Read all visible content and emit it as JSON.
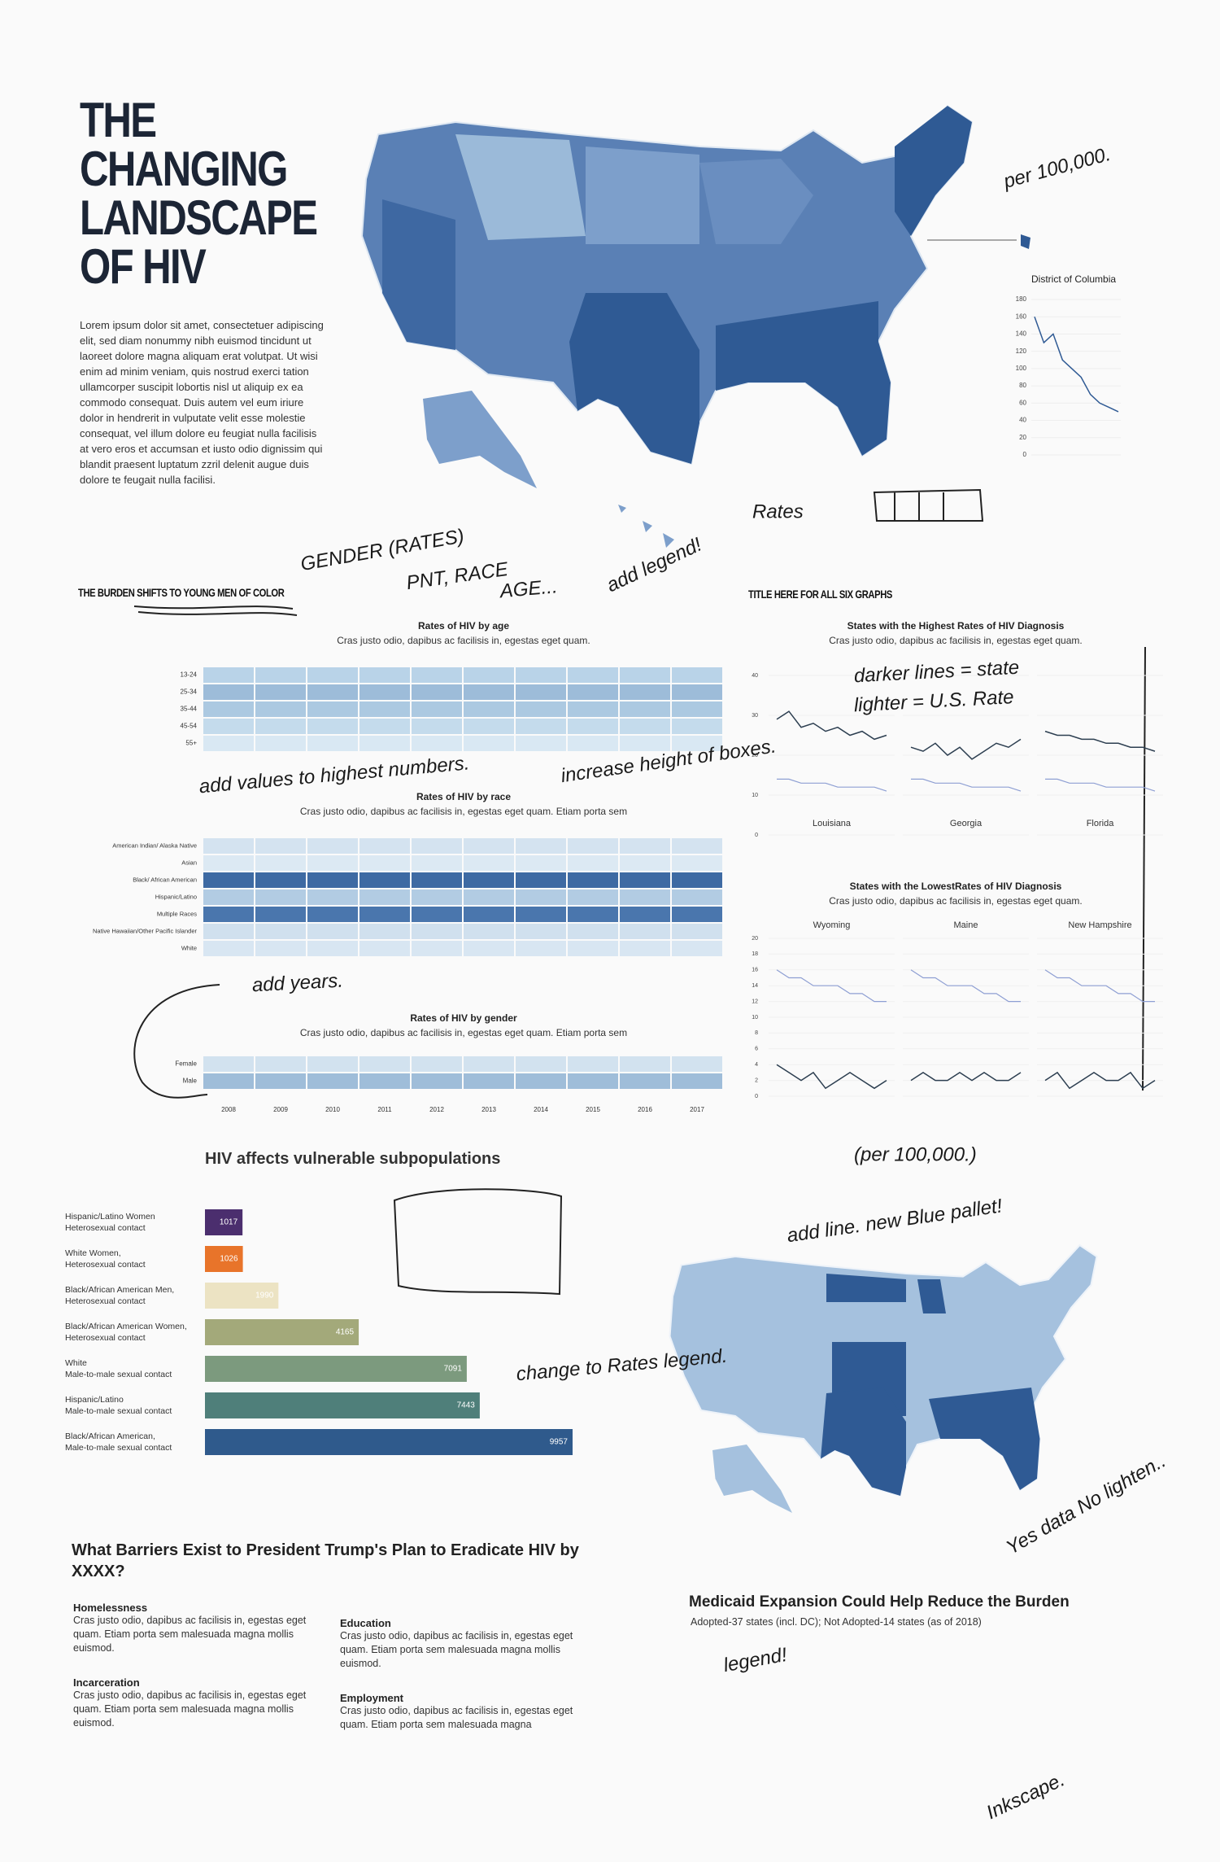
{
  "header": {
    "title_lines": [
      "THE",
      "CHANGING",
      "LANDSCAPE",
      "OF HIV"
    ],
    "body": "Lorem ipsum dolor sit amet, consectetuer adipiscing elit, sed diam nonummy nibh euismod tincidunt ut laoreet dolore magna aliquam erat volutpat. Ut wisi enim ad minim veniam, quis nostrud exerci tation ullamcorper suscipit lobortis nisl ut aliquip ex ea commodo consequat. Duis autem vel eum iriure dolor in hendrerit in vulputate velit esse molestie consequat, vel illum dolore eu feugiat nulla facilisis at vero eros et accumsan et iusto odio dignissim qui blandit praesent luptatum zzril delenit augue duis dolore te feugait nulla facilisi."
  },
  "dc_chart": {
    "type": "line",
    "title": "District of Columbia",
    "color": "#2f5a94",
    "values": [
      160,
      130,
      140,
      110,
      100,
      90,
      70,
      60,
      55,
      50
    ],
    "ylim": [
      0,
      180
    ],
    "yticks": [
      0,
      20,
      40,
      60,
      80,
      100,
      120,
      140,
      160,
      180
    ]
  },
  "burden": {
    "heading": "THE BURDEN SHIFTS TO YOUNG MEN OF COLOR",
    "age": {
      "type": "heatmap",
      "title": "Rates of HIV by age",
      "subtitle": "Cras justo odio, dapibus ac facilisis in, egestas eget quam.",
      "categories": [
        "13-24",
        "25-34",
        "35-44",
        "45-54",
        "55+"
      ],
      "colors": [
        "#b9d3e8",
        "#9dbcd9",
        "#acc9e1",
        "#c4dbec",
        "#d9e8f3"
      ]
    },
    "race": {
      "type": "heatmap",
      "title": "Rates of HIV by race",
      "subtitle": "Cras justo odio, dapibus ac facilisis in, egestas eget quam. Etiam porta sem",
      "categories": [
        "American Indian/ Alaska Native",
        "Asian",
        "Black/ African American",
        "Hispanic/Latino",
        "Multiple Races",
        "Native Hawaiian/Other Pacific Islander",
        "White"
      ],
      "colors": [
        "#d4e3f0",
        "#dce9f3",
        "#3e6aa3",
        "#b2cce3",
        "#4a76ad",
        "#d0e0ee",
        "#d8e6f2"
      ]
    },
    "gender": {
      "type": "heatmap",
      "title": "Rates of HIV by gender",
      "subtitle": "Cras justo odio, dapibus ac facilisis in, egestas eget quam. Etiam porta sem",
      "categories": [
        "Female",
        "Male"
      ],
      "colors": [
        "#d2e2ef",
        "#9fbdd9"
      ],
      "years": [
        2008,
        2009,
        2010,
        2011,
        2012,
        2013,
        2014,
        2015,
        2016,
        2017
      ]
    }
  },
  "six_graphs": {
    "heading": "TITLE HERE FOR ALL SIX GRAPHS",
    "state_color": "#2c3e50",
    "us_color": "#8e9fd3",
    "highest": {
      "type": "line",
      "title": "States with the Highest Rates of HIV Diagnosis",
      "subtitle": "Cras justo odio, dapibus ac facilisis in, egestas eget quam.",
      "ylim": [
        0,
        40
      ],
      "yticks": [
        0,
        10,
        20,
        30,
        40
      ],
      "panels": [
        {
          "label": "Louisiana",
          "state_values": [
            29,
            31,
            27,
            28,
            26,
            27,
            25,
            26,
            24,
            25
          ],
          "us_values": [
            14,
            14,
            13,
            13,
            13,
            12,
            12,
            12,
            12,
            11
          ]
        },
        {
          "label": "Georgia",
          "state_values": [
            22,
            21,
            23,
            20,
            22,
            19,
            21,
            23,
            22,
            24
          ],
          "us_values": [
            14,
            14,
            13,
            13,
            13,
            12,
            12,
            12,
            12,
            11
          ]
        },
        {
          "label": "Florida",
          "state_values": [
            26,
            25,
            25,
            24,
            24,
            23,
            23,
            22,
            22,
            21
          ],
          "us_values": [
            14,
            14,
            13,
            13,
            13,
            12,
            12,
            12,
            12,
            11
          ]
        }
      ]
    },
    "lowest": {
      "type": "line",
      "title": "States with the LowestRates of HIV Diagnosis",
      "subtitle": "Cras justo odio, dapibus ac facilisis in, egestas eget quam.",
      "ylim": [
        0,
        20
      ],
      "yticks": [
        0,
        2,
        4,
        6,
        8,
        10,
        12,
        14,
        16,
        18,
        20
      ],
      "panels": [
        {
          "label": "Wyoming",
          "state_values": [
            4,
            3,
            2,
            3,
            1,
            2,
            3,
            2,
            1,
            2
          ],
          "us_values": [
            16,
            15,
            15,
            14,
            14,
            14,
            13,
            13,
            12,
            12
          ]
        },
        {
          "label": "Maine",
          "state_values": [
            2,
            3,
            2,
            2,
            3,
            2,
            3,
            2,
            2,
            3
          ],
          "us_values": [
            16,
            15,
            15,
            14,
            14,
            14,
            13,
            13,
            12,
            12
          ]
        },
        {
          "label": "New Hampshire",
          "state_values": [
            2,
            3,
            1,
            2,
            3,
            2,
            2,
            3,
            1,
            2
          ],
          "us_values": [
            16,
            15,
            15,
            14,
            14,
            14,
            13,
            13,
            12,
            12
          ]
        }
      ]
    }
  },
  "subpopulations": {
    "type": "bar",
    "title": "HIV affects vulnerable subpopulations",
    "categories": [
      [
        "Hispanic/Latino Women",
        "Heterosexual contact"
      ],
      [
        "White Women,",
        "Heterosexual contact"
      ],
      [
        "Black/African American Men,",
        "Heterosexual contact"
      ],
      [
        "Black/African American Women,",
        "Heterosexual contact"
      ],
      [
        "White",
        "Male-to-male sexual contact"
      ],
      [
        "Hispanic/Latino",
        "Male-to-male sexual contact"
      ],
      [
        "Black/African American,",
        "Male-to-male sexual contact"
      ]
    ],
    "values": [
      1017,
      1026,
      1990,
      4165,
      7091,
      7443,
      9957
    ],
    "colors": [
      "#4b2e6e",
      "#e8742a",
      "#ece3c3",
      "#a3a97a",
      "#7c9a7e",
      "#4f7f7a",
      "#2f5a8c"
    ],
    "xlim": [
      0,
      9957
    ]
  },
  "barriers": {
    "title": "What Barriers Exist to President Trump's Plan to Eradicate HIV by XXXX?",
    "sections": [
      {
        "heading": "Homelessness",
        "body": "Cras justo odio, dapibus ac facilisis in, egestas eget quam. Etiam porta sem malesuada magna mollis euismod."
      },
      {
        "heading": "Education",
        "body": "Cras justo odio, dapibus ac facilisis in, egestas eget quam. Etiam porta sem malesuada magna mollis euismod."
      },
      {
        "heading": "Incarceration",
        "body": "Cras justo odio, dapibus ac facilisis in, egestas eget quam. Etiam porta sem malesuada magna mollis euismod."
      },
      {
        "heading": "Employment",
        "body": "Cras justo odio, dapibus ac facilisis in, egestas eget quam. Etiam porta sem malesuada magna"
      }
    ]
  },
  "medicaid": {
    "title": "Medicaid Expansion Could Help Reduce the Burden",
    "subtitle": "Adopted-37 states (incl. DC); Not Adopted-14 states (as of 2018)"
  },
  "annotations": [
    "per 100,000.",
    "Rates",
    "GENDER (RATES)",
    "PNT, RACE",
    "AGE...",
    "add legend!",
    "darker lines = state",
    "lighter = U.S. Rate",
    "add values to highest numbers.",
    "increase height of boxes.",
    "add years.",
    "(per 100,000.)",
    "add line. new Blue pallet!",
    "change to Rates legend.",
    "legend!",
    "Yes data No lighten..",
    "Inkscape."
  ]
}
